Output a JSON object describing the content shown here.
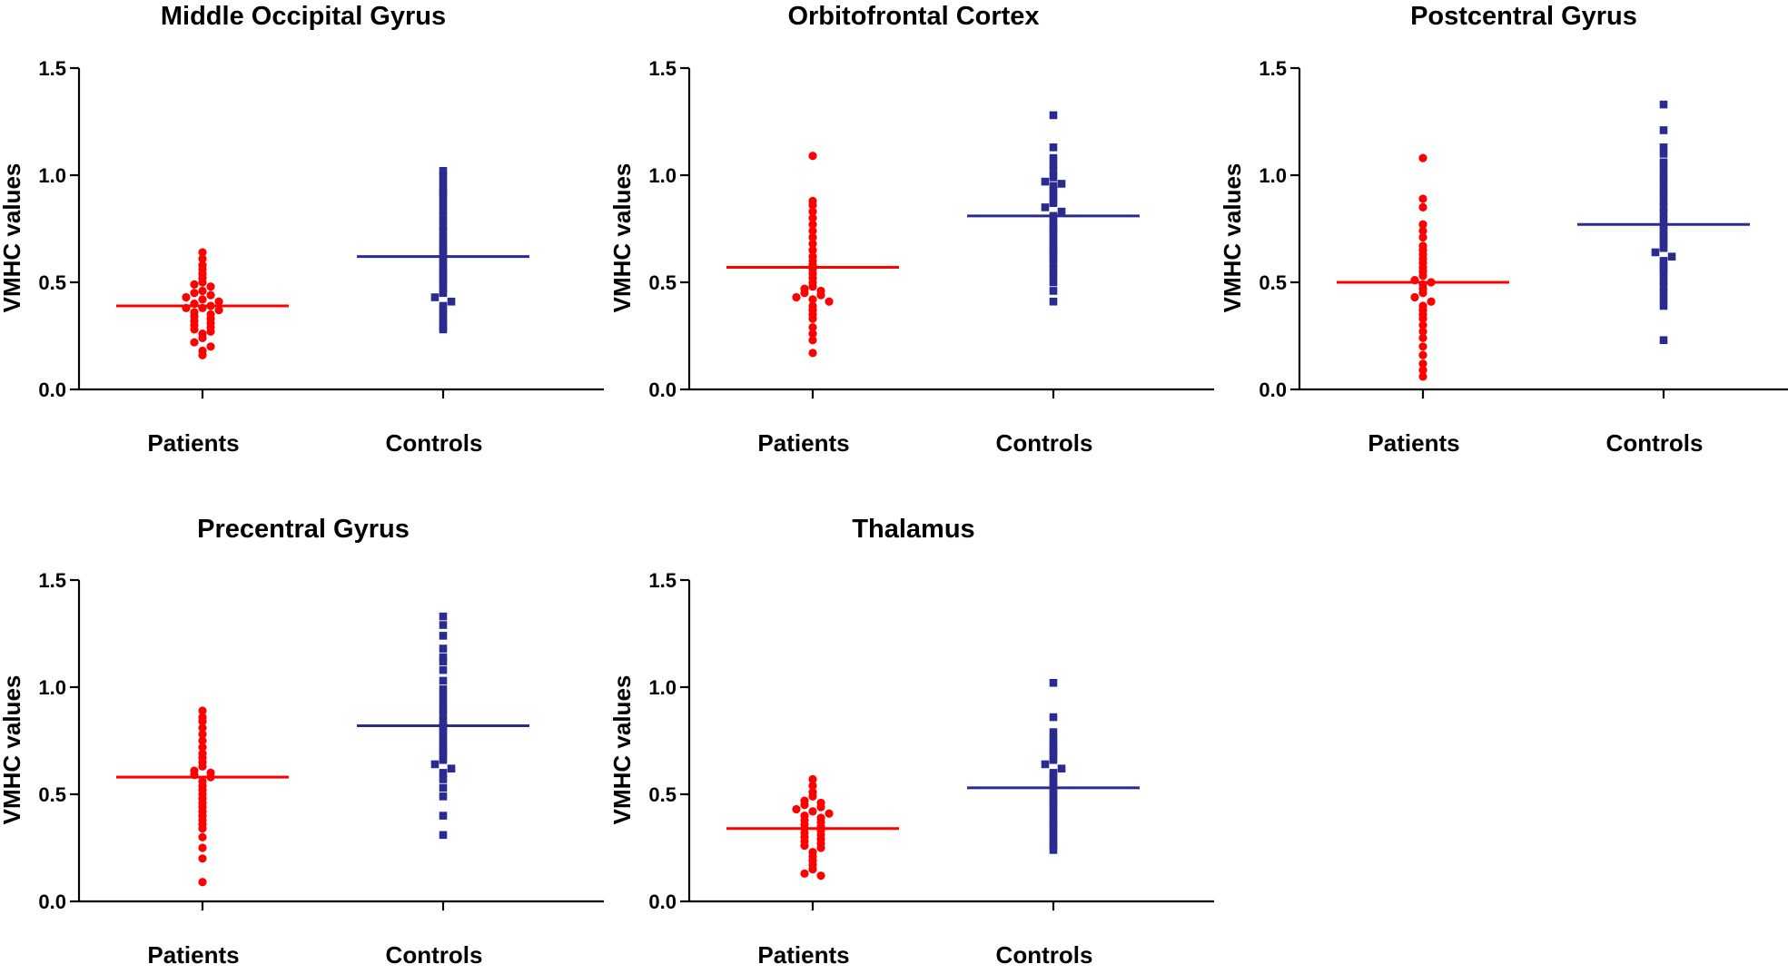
{
  "colors": {
    "patients": "#ff0000",
    "controls": "#2b2b8f",
    "axis": "#000000"
  },
  "chart_data": [
    {
      "type": "scatter",
      "title": "Middle Occipital Gyrus",
      "ylabel": "VMHC values",
      "ylim": [
        0,
        1.5
      ],
      "yticks": [
        0.0,
        0.5,
        1.0,
        1.5
      ],
      "ytick_labels": [
        "0.0",
        "0.5",
        "1.0",
        "1.5"
      ],
      "categories": [
        "Patients",
        "Controls"
      ],
      "series": [
        {
          "name": "Patients",
          "marker": "circle",
          "mean": 0.39,
          "values": [
            0.64,
            0.61,
            0.58,
            0.56,
            0.54,
            0.52,
            0.5,
            0.49,
            0.48,
            0.46,
            0.45,
            0.44,
            0.43,
            0.42,
            0.41,
            0.4,
            0.39,
            0.38,
            0.38,
            0.37,
            0.36,
            0.35,
            0.34,
            0.33,
            0.32,
            0.31,
            0.3,
            0.29,
            0.28,
            0.27,
            0.26,
            0.24,
            0.22,
            0.2,
            0.18,
            0.16
          ]
        },
        {
          "name": "Controls",
          "marker": "square",
          "mean": 0.62,
          "values": [
            1.02,
            1.0,
            0.97,
            0.94,
            0.92,
            0.9,
            0.87,
            0.84,
            0.81,
            0.79,
            0.76,
            0.74,
            0.71,
            0.69,
            0.67,
            0.65,
            0.63,
            0.61,
            0.59,
            0.57,
            0.55,
            0.53,
            0.51,
            0.49,
            0.47,
            0.45,
            0.43,
            0.41,
            0.39,
            0.37,
            0.35,
            0.33,
            0.31,
            0.29,
            0.28
          ]
        }
      ]
    },
    {
      "type": "scatter",
      "title": "Orbitofrontal Cortex",
      "ylabel": "VMHC values",
      "ylim": [
        0,
        1.5
      ],
      "yticks": [
        0.0,
        0.5,
        1.0,
        1.5
      ],
      "ytick_labels": [
        "0.0",
        "0.5",
        "1.0",
        "1.5"
      ],
      "categories": [
        "Patients",
        "Controls"
      ],
      "series": [
        {
          "name": "Patients",
          "marker": "circle",
          "mean": 0.57,
          "values": [
            1.09,
            0.88,
            0.86,
            0.83,
            0.8,
            0.77,
            0.74,
            0.71,
            0.68,
            0.65,
            0.62,
            0.6,
            0.58,
            0.56,
            0.54,
            0.52,
            0.5,
            0.48,
            0.47,
            0.46,
            0.45,
            0.44,
            0.43,
            0.42,
            0.41,
            0.39,
            0.37,
            0.35,
            0.33,
            0.29,
            0.26,
            0.23,
            0.17
          ]
        },
        {
          "name": "Controls",
          "marker": "square",
          "mean": 0.81,
          "values": [
            1.28,
            1.13,
            1.08,
            1.05,
            1.02,
            0.99,
            0.97,
            0.96,
            0.95,
            0.93,
            0.91,
            0.89,
            0.87,
            0.85,
            0.83,
            0.81,
            0.79,
            0.77,
            0.75,
            0.73,
            0.71,
            0.69,
            0.67,
            0.65,
            0.63,
            0.61,
            0.59,
            0.56,
            0.53,
            0.5,
            0.46,
            0.41
          ]
        }
      ]
    },
    {
      "type": "scatter",
      "title": "Postcentral Gyrus",
      "ylabel": "VMHC values",
      "ylim": [
        0,
        1.5
      ],
      "yticks": [
        0.0,
        0.5,
        1.0,
        1.5
      ],
      "ytick_labels": [
        "0.0",
        "0.5",
        "1.0",
        "1.5"
      ],
      "categories": [
        "Patients",
        "Controls"
      ],
      "series": [
        {
          "name": "Patients",
          "marker": "circle",
          "mean": 0.5,
          "values": [
            1.08,
            0.89,
            0.85,
            0.77,
            0.74,
            0.71,
            0.67,
            0.65,
            0.63,
            0.61,
            0.59,
            0.57,
            0.55,
            0.53,
            0.51,
            0.5,
            0.49,
            0.47,
            0.45,
            0.43,
            0.41,
            0.39,
            0.37,
            0.35,
            0.33,
            0.3,
            0.27,
            0.24,
            0.2,
            0.16,
            0.12,
            0.09,
            0.06
          ]
        },
        {
          "name": "Controls",
          "marker": "square",
          "mean": 0.77,
          "values": [
            1.33,
            1.21,
            1.13,
            1.1,
            1.06,
            1.03,
            1.0,
            0.97,
            0.94,
            0.91,
            0.88,
            0.85,
            0.82,
            0.79,
            0.76,
            0.74,
            0.72,
            0.7,
            0.68,
            0.66,
            0.64,
            0.62,
            0.6,
            0.58,
            0.56,
            0.54,
            0.51,
            0.48,
            0.45,
            0.42,
            0.39,
            0.23
          ]
        }
      ]
    },
    {
      "type": "scatter",
      "title": "Precentral Gyrus",
      "ylabel": "VMHC values",
      "ylim": [
        0,
        1.5
      ],
      "yticks": [
        0.0,
        0.5,
        1.0,
        1.5
      ],
      "ytick_labels": [
        "0.0",
        "0.5",
        "1.0",
        "1.5"
      ],
      "categories": [
        "Patients",
        "Controls"
      ],
      "series": [
        {
          "name": "Patients",
          "marker": "circle",
          "mean": 0.58,
          "values": [
            0.89,
            0.86,
            0.84,
            0.81,
            0.78,
            0.75,
            0.72,
            0.69,
            0.67,
            0.65,
            0.63,
            0.61,
            0.6,
            0.59,
            0.58,
            0.56,
            0.54,
            0.52,
            0.5,
            0.48,
            0.46,
            0.44,
            0.42,
            0.4,
            0.38,
            0.36,
            0.34,
            0.3,
            0.25,
            0.2,
            0.09
          ]
        },
        {
          "name": "Controls",
          "marker": "square",
          "mean": 0.82,
          "values": [
            1.33,
            1.29,
            1.24,
            1.18,
            1.14,
            1.12,
            1.08,
            1.03,
            0.99,
            0.96,
            0.93,
            0.9,
            0.87,
            0.84,
            0.82,
            0.8,
            0.78,
            0.76,
            0.74,
            0.72,
            0.7,
            0.68,
            0.66,
            0.64,
            0.62,
            0.6,
            0.57,
            0.53,
            0.49,
            0.4,
            0.31
          ]
        }
      ]
    },
    {
      "type": "scatter",
      "title": "Thalamus",
      "ylabel": "VMHC values",
      "ylim": [
        0,
        1.5
      ],
      "yticks": [
        0.0,
        0.5,
        1.0,
        1.5
      ],
      "ytick_labels": [
        "0.0",
        "0.5",
        "1.0",
        "1.5"
      ],
      "categories": [
        "Patients",
        "Controls"
      ],
      "series": [
        {
          "name": "Patients",
          "marker": "circle",
          "mean": 0.34,
          "values": [
            0.57,
            0.54,
            0.51,
            0.49,
            0.47,
            0.46,
            0.45,
            0.44,
            0.43,
            0.42,
            0.41,
            0.4,
            0.39,
            0.38,
            0.37,
            0.36,
            0.35,
            0.34,
            0.33,
            0.32,
            0.31,
            0.3,
            0.29,
            0.28,
            0.27,
            0.26,
            0.25,
            0.23,
            0.21,
            0.19,
            0.17,
            0.15,
            0.13,
            0.12
          ]
        },
        {
          "name": "Controls",
          "marker": "square",
          "mean": 0.53,
          "values": [
            1.02,
            0.86,
            0.79,
            0.76,
            0.74,
            0.72,
            0.7,
            0.68,
            0.66,
            0.64,
            0.62,
            0.6,
            0.58,
            0.56,
            0.54,
            0.52,
            0.5,
            0.48,
            0.46,
            0.44,
            0.42,
            0.4,
            0.38,
            0.36,
            0.34,
            0.32,
            0.3,
            0.28,
            0.26,
            0.24
          ]
        }
      ]
    }
  ]
}
